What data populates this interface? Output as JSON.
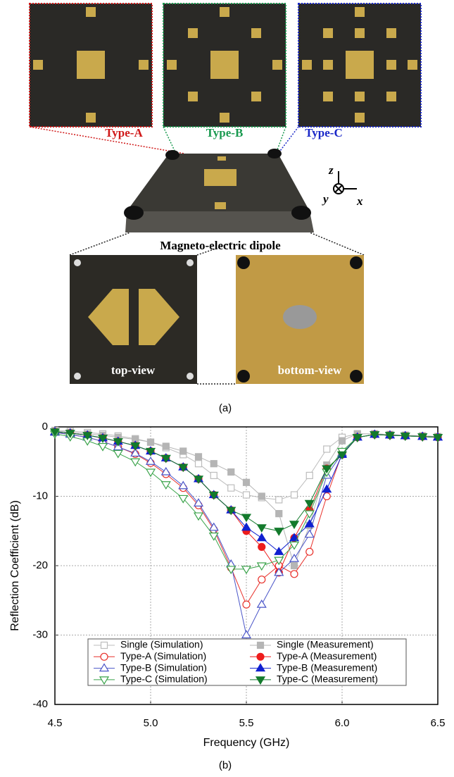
{
  "panel_a": {
    "type_a": "Type-A",
    "type_b": "Type-B",
    "type_c": "Type-C",
    "dipole_label": "Magneto-electric dipole",
    "top_view": "top-view",
    "bottom_view": "bottom-view",
    "axis_z": "z",
    "axis_y": "y",
    "axis_x": "x",
    "caption": "(a)"
  },
  "chart_data": {
    "type": "line",
    "xlabel": "Frequency (GHz)",
    "ylabel": "Reflection Coefficient (dB)",
    "xlim": [
      4.5,
      6.5
    ],
    "xticks": [
      4.5,
      {
        "value": 5,
        "label": "5.0"
      },
      5.5,
      {
        "value": 6,
        "label": "6.0"
      },
      6.5
    ],
    "ylim": [
      -40,
      0
    ],
    "yticks": [
      0,
      -10,
      -20,
      -30,
      -40
    ],
    "grid": true,
    "legend": "lower left",
    "x": [
      4.5,
      4.58,
      4.67,
      4.75,
      4.83,
      4.92,
      5.0,
      5.08,
      5.17,
      5.25,
      5.33,
      5.42,
      5.5,
      5.58,
      5.67,
      5.75,
      5.83,
      5.92,
      6.0,
      6.08,
      6.17,
      6.25,
      6.33,
      6.42,
      6.5
    ],
    "series": [
      {
        "name": "Single (Simulation)",
        "color": "#bdbdbd",
        "marker": "square",
        "filled": false,
        "values": [
          -0.5,
          -0.6,
          -0.8,
          -1,
          -1.3,
          -1.7,
          -2.2,
          -3,
          -4,
          -5.3,
          -7,
          -8.8,
          -9.8,
          -10.2,
          -10.5,
          -9.8,
          -7,
          -3.2,
          -1.5,
          -1,
          -1,
          -1.1,
          -1.2,
          -1.3,
          -1.4
        ]
      },
      {
        "name": "Single (Measurement)",
        "color": "#b5b5b5",
        "marker": "square",
        "filled": true,
        "values": [
          -0.6,
          -0.8,
          -1,
          -1.2,
          -1.5,
          -1.8,
          -2.2,
          -2.8,
          -3.5,
          -4.3,
          -5.3,
          -6.5,
          -8,
          -10,
          -12.5,
          -20,
          -14.2,
          -5.5,
          -2,
          -1,
          -1,
          -1.1,
          -1.2,
          -1.3,
          -1.4
        ]
      },
      {
        "name": "Type-A (Simulation)",
        "color": "#e8312b",
        "marker": "circle",
        "filled": false,
        "values": [
          -0.8,
          -1.1,
          -1.5,
          -2.1,
          -2.9,
          -3.9,
          -5.2,
          -6.8,
          -8.8,
          -11.3,
          -14.8,
          -20.3,
          -25.6,
          -22,
          -20,
          -21.2,
          -18,
          -10,
          -3.8,
          -1.5,
          -1.1,
          -1.2,
          -1.3,
          -1.4,
          -1.5
        ]
      },
      {
        "name": "Type-A (Measurement)",
        "color": "#ee1c1c",
        "marker": "circle",
        "filled": true,
        "values": [
          -0.7,
          -0.9,
          -1.2,
          -1.6,
          -2.1,
          -2.7,
          -3.5,
          -4.5,
          -5.8,
          -7.5,
          -9.8,
          -12,
          -15,
          -17.3,
          -21,
          -16,
          -12,
          -6,
          -4,
          -1.5,
          -1.1,
          -1.2,
          -1.3,
          -1.4,
          -1.5
        ]
      },
      {
        "name": "Type-B (Simulation)",
        "color": "#4a55c8",
        "marker": "triangle-up",
        "filled": false,
        "values": [
          -0.8,
          -1.1,
          -1.5,
          -2.1,
          -2.9,
          -3.8,
          -5,
          -6.5,
          -8.5,
          -11,
          -14.5,
          -19.8,
          -30,
          -25.6,
          -21,
          -19,
          -15.5,
          -7,
          -3.8,
          -1.5,
          -1.1,
          -1.2,
          -1.3,
          -1.4,
          -1.5
        ]
      },
      {
        "name": "Type-B (Measurement)",
        "color": "#1020d0",
        "marker": "triangle-up",
        "filled": true,
        "values": [
          -0.7,
          -0.9,
          -1.2,
          -1.6,
          -2.1,
          -2.7,
          -3.5,
          -4.5,
          -5.8,
          -7.5,
          -9.8,
          -12,
          -14.5,
          -16,
          -18,
          -16,
          -14,
          -9,
          -4,
          -1.5,
          -1.1,
          -1.2,
          -1.3,
          -1.4,
          -1.5
        ]
      },
      {
        "name": "Type-C (Simulation)",
        "color": "#3aa34a",
        "marker": "triangle-down",
        "filled": false,
        "values": [
          -1,
          -1.4,
          -2,
          -2.8,
          -3.8,
          -5,
          -6.5,
          -8.3,
          -10.3,
          -12.8,
          -15.7,
          -20.5,
          -20.5,
          -20,
          -19.2,
          -17,
          -12.5,
          -6.5,
          -3.5,
          -1.5,
          -1.1,
          -1.2,
          -1.3,
          -1.4,
          -1.5
        ]
      },
      {
        "name": "Type-C (Measurement)",
        "color": "#137a2c",
        "marker": "triangle-down",
        "filled": true,
        "values": [
          -0.7,
          -0.9,
          -1.2,
          -1.6,
          -2.1,
          -2.7,
          -3.5,
          -4.5,
          -5.8,
          -7.5,
          -9.8,
          -12,
          -13,
          -14.5,
          -15,
          -14,
          -11,
          -6,
          -4,
          -1.5,
          -1.1,
          -1.2,
          -1.3,
          -1.4,
          -1.5
        ]
      }
    ]
  },
  "caption_b": "(b)"
}
